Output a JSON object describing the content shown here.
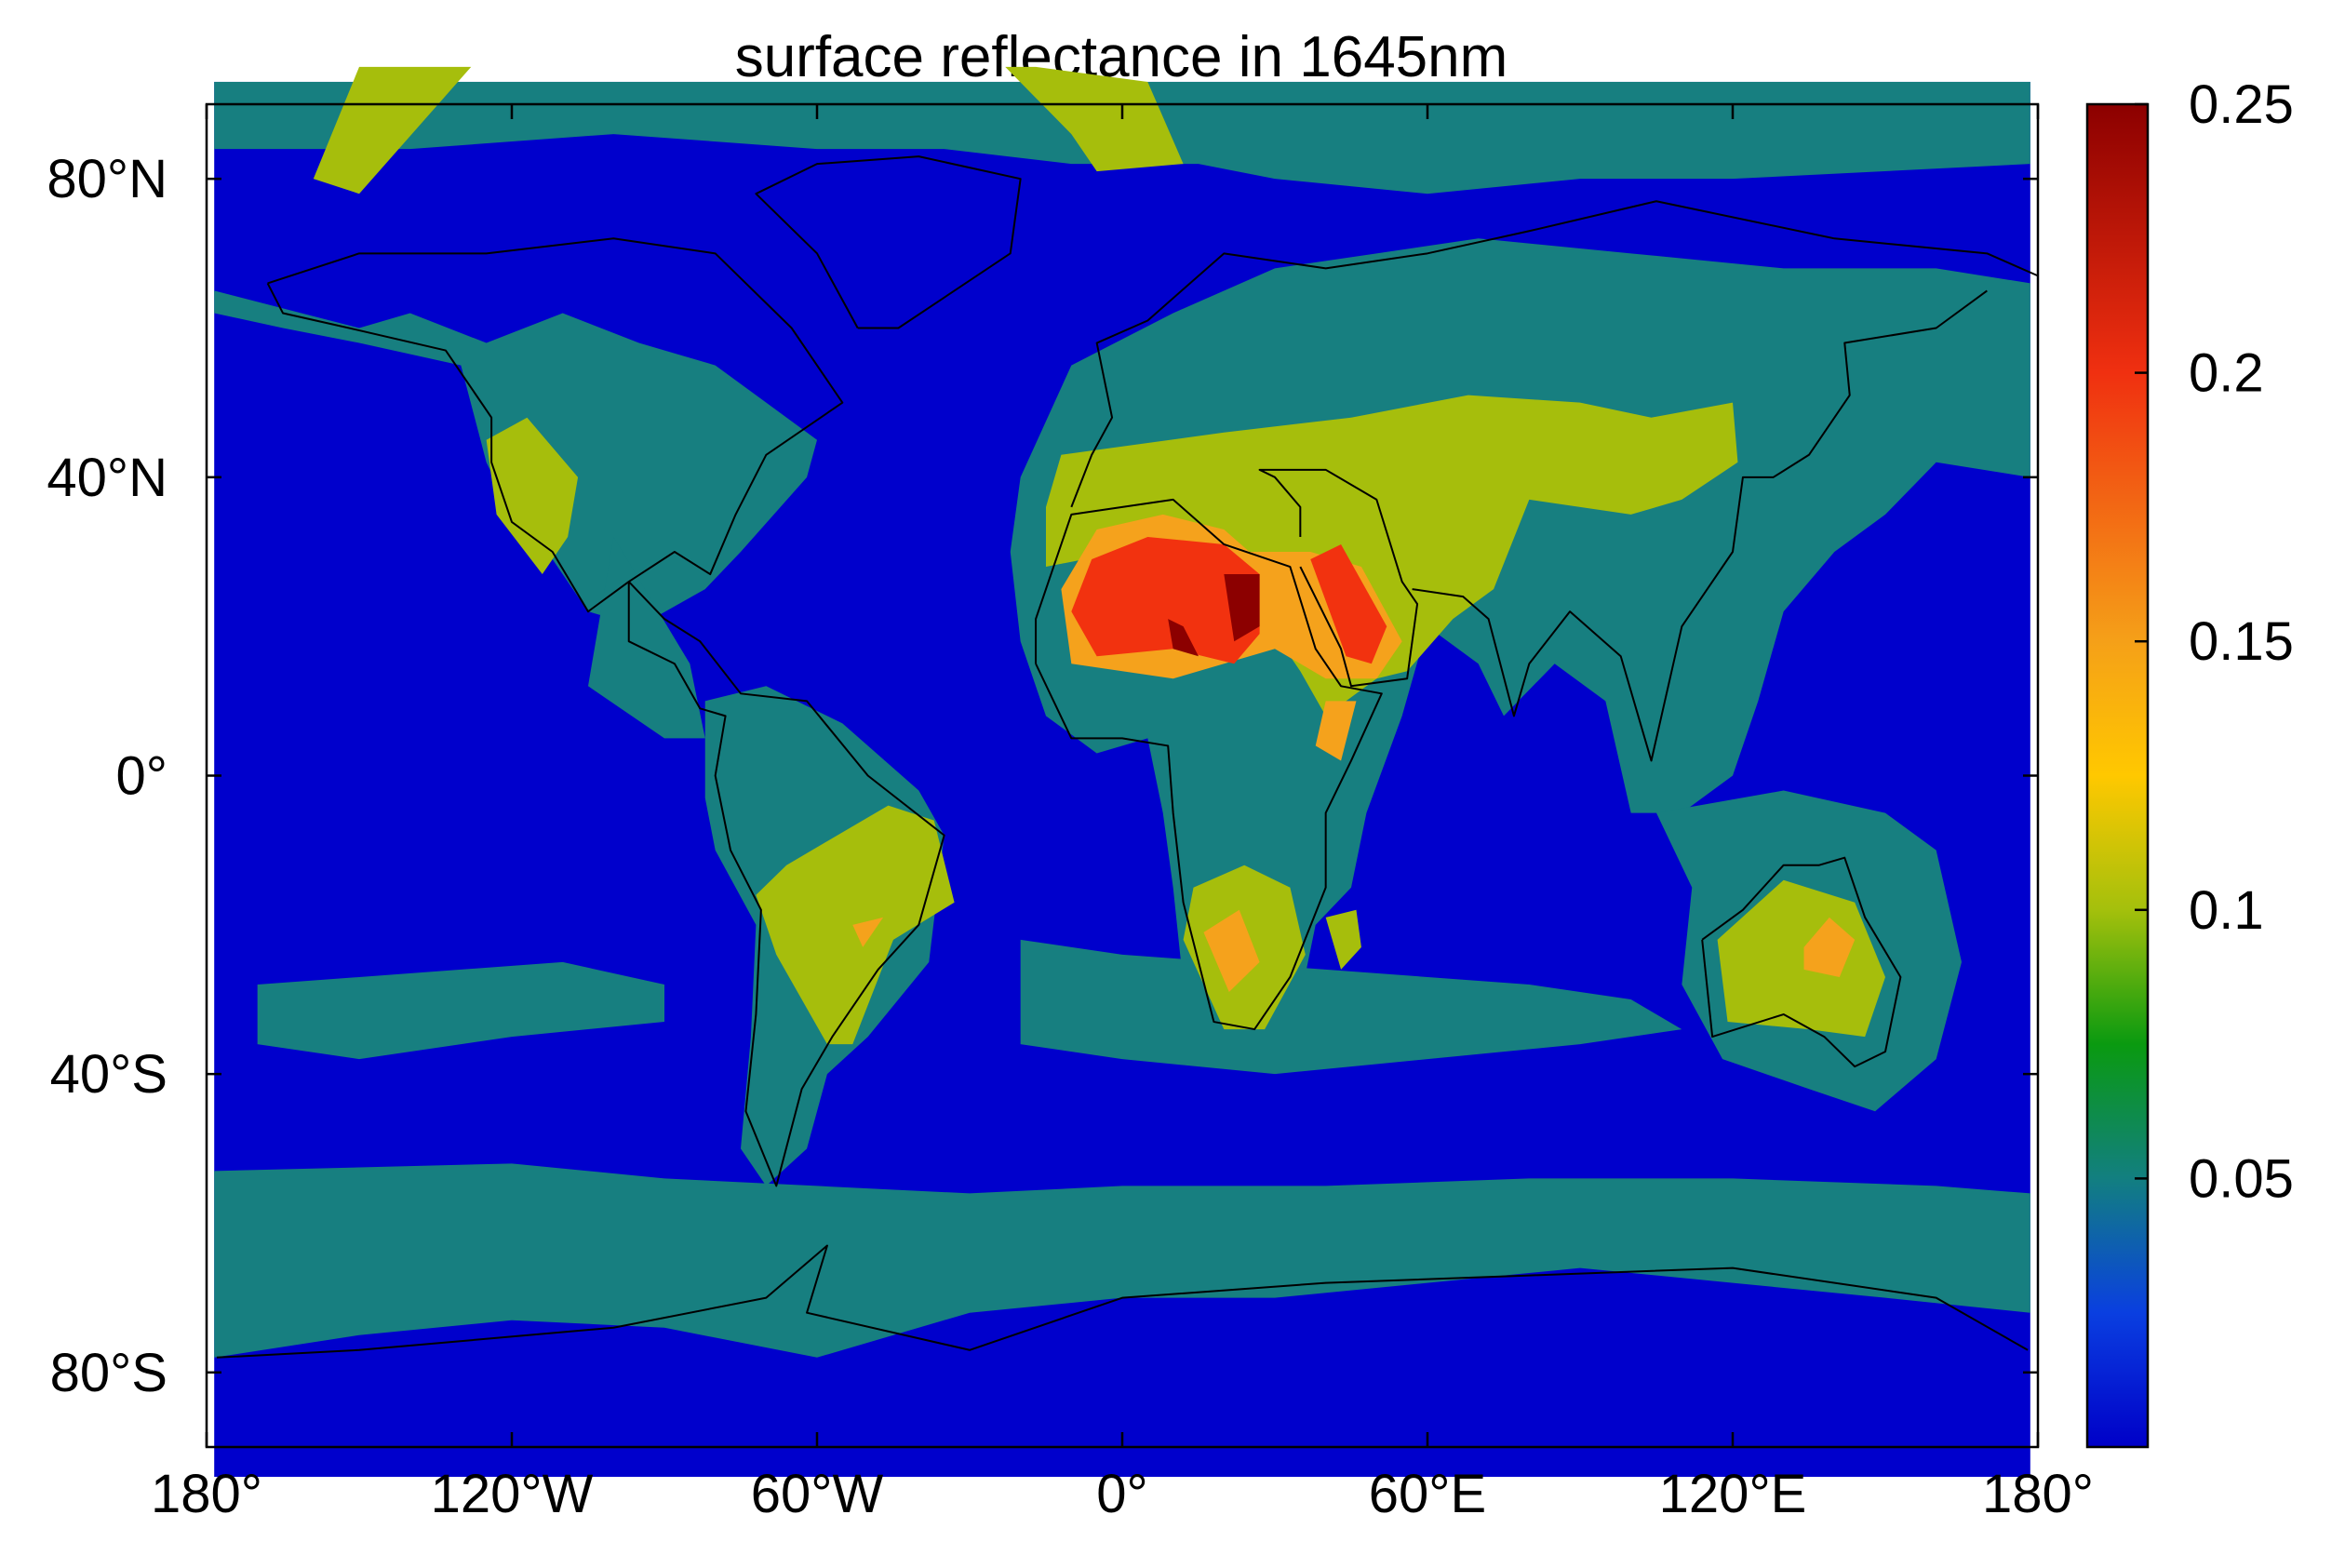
{
  "chart_data": {
    "type": "heatmap",
    "title": "surface reflectance in 1645nm",
    "xlabel": "",
    "ylabel": "",
    "xlim": [
      -180,
      180
    ],
    "ylim": [
      -90,
      90
    ],
    "x_ticks": [
      {
        "value": -180,
        "label": "180°"
      },
      {
        "value": -120,
        "label": "120°W"
      },
      {
        "value": -60,
        "label": "60°W"
      },
      {
        "value": 0,
        "label": "0°"
      },
      {
        "value": 60,
        "label": "60°E"
      },
      {
        "value": 120,
        "label": "120°E"
      },
      {
        "value": 180,
        "label": "180°"
      }
    ],
    "y_ticks": [
      {
        "value": 80,
        "label": "80°N"
      },
      {
        "value": 40,
        "label": "40°N"
      },
      {
        "value": 0,
        "label": "0°"
      },
      {
        "value": -40,
        "label": "40°S"
      },
      {
        "value": -80,
        "label": "80°S"
      }
    ],
    "colorbar": {
      "min": 0,
      "max": 0.25,
      "ticks": [
        {
          "value": 0.05,
          "label": "0.05"
        },
        {
          "value": 0.1,
          "label": "0.1"
        },
        {
          "value": 0.15,
          "label": "0.15"
        },
        {
          "value": 0.2,
          "label": "0.2"
        },
        {
          "value": 0.25,
          "label": "0.25"
        }
      ],
      "colormap": [
        {
          "value": 0,
          "color": "#0000c8"
        },
        {
          "value": 0.025,
          "color": "#0a3fe0"
        },
        {
          "value": 0.05,
          "color": "#127f80"
        },
        {
          "value": 0.075,
          "color": "#0a9a10"
        },
        {
          "value": 0.1,
          "color": "#a4c00c"
        },
        {
          "value": 0.125,
          "color": "#ffc800"
        },
        {
          "value": 0.15,
          "color": "#f5a018"
        },
        {
          "value": 0.2,
          "color": "#f03010"
        },
        {
          "value": 0.25,
          "color": "#8c0000"
        }
      ]
    },
    "contour_levels": [
      {
        "level": 0.025,
        "color": "#0000cc"
      },
      {
        "level": 0.06,
        "color": "#177f80"
      },
      {
        "level": 0.1,
        "color": "#a6be0c"
      },
      {
        "level": 0.15,
        "color": "#f5a21c"
      },
      {
        "level": 0.2,
        "color": "#f2320f"
      },
      {
        "level": 0.24,
        "color": "#8c0000"
      }
    ],
    "regions": [
      {
        "level": 0.1,
        "points": [
          [
            -150,
            95
          ],
          [
            -128,
            95
          ],
          [
            -150,
            78
          ],
          [
            -159,
            80
          ]
        ]
      },
      {
        "level": 0.1,
        "points": [
          [
            -23,
            95
          ],
          [
            -17,
            95
          ],
          [
            5,
            93
          ],
          [
            12,
            82
          ],
          [
            -5,
            81
          ],
          [
            -10,
            86
          ]
        ]
      },
      {
        "level": 0.1,
        "points": [
          [
            -125,
            45
          ],
          [
            -117,
            48
          ],
          [
            -107,
            40
          ],
          [
            -109,
            32
          ],
          [
            -114,
            27
          ],
          [
            -123,
            35
          ]
        ]
      },
      {
        "level": 0.1,
        "points": [
          [
            -12,
            43
          ],
          [
            20,
            46
          ],
          [
            45,
            48
          ],
          [
            68,
            51
          ],
          [
            90,
            50
          ],
          [
            104,
            48
          ],
          [
            120,
            50
          ],
          [
            121,
            42
          ],
          [
            110,
            37
          ],
          [
            100,
            35
          ],
          [
            80,
            37
          ],
          [
            73,
            25
          ],
          [
            65,
            21
          ],
          [
            56,
            14
          ],
          [
            50,
            13
          ],
          [
            40,
            8
          ],
          [
            35,
            14
          ],
          [
            30,
            19
          ],
          [
            22,
            24
          ],
          [
            0,
            30
          ],
          [
            -15,
            28
          ],
          [
            -15,
            36
          ]
        ]
      },
      {
        "level": 0.1,
        "points": [
          [
            -66,
            -12
          ],
          [
            -46,
            -4
          ],
          [
            -37,
            -6
          ],
          [
            -33,
            -17
          ],
          [
            -45,
            -22
          ],
          [
            -53,
            -36
          ],
          [
            -58,
            -36
          ],
          [
            -68,
            -24
          ],
          [
            -72,
            -16
          ]
        ]
      },
      {
        "level": 0.1,
        "points": [
          [
            14,
            -15
          ],
          [
            24,
            -12
          ],
          [
            33,
            -15
          ],
          [
            36,
            -24
          ],
          [
            28,
            -34
          ],
          [
            20,
            -34
          ],
          [
            12,
            -22
          ]
        ]
      },
      {
        "level": 0.1,
        "points": [
          [
            117,
            -22
          ],
          [
            130,
            -14
          ],
          [
            144,
            -17
          ],
          [
            150,
            -27
          ],
          [
            146,
            -35
          ],
          [
            135,
            -34
          ],
          [
            119,
            -33
          ]
        ]
      },
      {
        "level": 0.1,
        "points": [
          [
            40,
            -19
          ],
          [
            46,
            -18
          ],
          [
            47,
            -23
          ],
          [
            43,
            -26
          ]
        ]
      },
      {
        "level": 0.15,
        "points": [
          [
            -12,
            25
          ],
          [
            -5,
            33
          ],
          [
            8,
            35
          ],
          [
            20,
            33
          ],
          [
            25,
            30
          ],
          [
            37,
            30
          ],
          [
            47,
            28
          ],
          [
            55,
            18
          ],
          [
            50,
            13
          ],
          [
            40,
            13
          ],
          [
            30,
            17
          ],
          [
            10,
            13
          ],
          [
            -10,
            15
          ]
        ]
      },
      {
        "level": 0.15,
        "points": [
          [
            40,
            10
          ],
          [
            46,
            10
          ],
          [
            43,
            2
          ],
          [
            38,
            4
          ]
        ]
      },
      {
        "level": 0.15,
        "points": [
          [
            -53,
            -20
          ],
          [
            -47,
            -19
          ],
          [
            -51,
            -23
          ]
        ]
      },
      {
        "level": 0.15,
        "points": [
          [
            16,
            -21
          ],
          [
            23,
            -18
          ],
          [
            27,
            -25
          ],
          [
            21,
            -29
          ]
        ]
      },
      {
        "level": 0.15,
        "points": [
          [
            134,
            -23
          ],
          [
            139,
            -19
          ],
          [
            144,
            -22
          ],
          [
            141,
            -27
          ],
          [
            134,
            -26
          ]
        ]
      },
      {
        "level": 0.2,
        "points": [
          [
            -10,
            22
          ],
          [
            -6,
            29
          ],
          [
            5,
            32
          ],
          [
            20,
            31
          ],
          [
            27,
            27
          ],
          [
            27,
            19
          ],
          [
            22,
            15
          ],
          [
            10,
            17
          ],
          [
            -5,
            16
          ]
        ]
      },
      {
        "level": 0.2,
        "points": [
          [
            37,
            29
          ],
          [
            43,
            31
          ],
          [
            52,
            20
          ],
          [
            49,
            15
          ],
          [
            44,
            16
          ]
        ]
      },
      {
        "level": 0.24,
        "points": [
          [
            20,
            27
          ],
          [
            27,
            27
          ],
          [
            27,
            20
          ],
          [
            22,
            18
          ]
        ]
      },
      {
        "level": 0.24,
        "points": [
          [
            9,
            21
          ],
          [
            12,
            20
          ],
          [
            15,
            16
          ],
          [
            10,
            17
          ]
        ]
      }
    ]
  }
}
